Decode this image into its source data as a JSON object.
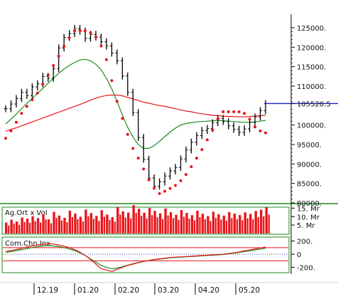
{
  "chart_data": {
    "type": "line",
    "main": {
      "y_ticks": [
        "125000.",
        "120000.",
        "115000.",
        "110000.",
        "105520.5",
        "100000.",
        "95000.",
        "90000.",
        "85000.",
        "80000."
      ],
      "y_range": [
        80000,
        127000
      ],
      "last_value": 105520.5,
      "price": [
        104200,
        105400,
        106800,
        108400,
        107600,
        109800,
        110600,
        112500,
        112000,
        114500,
        119800,
        122500,
        123500,
        124800,
        124100,
        122300,
        123300,
        122600,
        121400,
        120300,
        118500,
        116500,
        112600,
        108400,
        103200,
        96800,
        91200,
        86400,
        84300,
        85400,
        86900,
        88200,
        89100,
        91300,
        93600,
        95600,
        97300,
        98600,
        99100,
        100600,
        101700,
        100900,
        99800,
        98900,
        98100,
        99000,
        100700,
        102100,
        103700,
        105520
      ],
      "ma_short": [
        100300,
        101500,
        102800,
        104200,
        105600,
        106800,
        108100,
        109400,
        110700,
        112000,
        113300,
        114400,
        115300,
        116100,
        116700,
        116900,
        116500,
        115600,
        114200,
        112000,
        109300,
        106000,
        102600,
        99400,
        96900,
        95000,
        94000,
        94000,
        94700,
        95800,
        97000,
        98200,
        99200,
        100000,
        100400,
        100600,
        100800,
        100900,
        101000,
        101100,
        101200,
        101100,
        101000,
        100900,
        100800,
        100700,
        100700,
        100800,
        101000,
        101200
      ],
      "ma_long": [
        98400,
        98900,
        99300,
        99800,
        100300,
        100800,
        101300,
        101800,
        102300,
        102800,
        103300,
        103800,
        104300,
        104800,
        105300,
        105800,
        106400,
        106900,
        107300,
        107600,
        107700,
        107700,
        107500,
        107100,
        106700,
        106300,
        105900,
        105600,
        105300,
        105000,
        104800,
        104500,
        104200,
        103900,
        103600,
        103400,
        103100,
        102900,
        102700,
        102500,
        102400,
        102300,
        102200,
        102200,
        102100,
        102100,
        102200,
        102300,
        102400,
        102500
      ],
      "sar": [
        96600,
        98500,
        100700,
        103000,
        104800,
        106500,
        108200,
        110500,
        112800,
        115300,
        117700,
        120200,
        122400,
        124200,
        124300,
        124200,
        123700,
        122600,
        120300,
        116800,
        111400,
        106100,
        101700,
        97600,
        94000,
        91500,
        88700,
        86000,
        83800,
        82400,
        83000,
        83700,
        84500,
        85700,
        87300,
        89300,
        91500,
        93700,
        96200,
        98700,
        101600,
        103400,
        103400,
        103400,
        103400,
        103000,
        101500,
        99500,
        98500,
        98000
      ]
    },
    "volume": {
      "label": "Ag.Ort x Vol",
      "y_ticks": [
        "15. Mr",
        "10. Mr",
        "5. Mr"
      ],
      "values": [
        6.5,
        8.2,
        7.1,
        9.5,
        8.8,
        10.2,
        9.1,
        11.5,
        8.4,
        12.8,
        10.6,
        9.3,
        13.5,
        11.8,
        9.9,
        14.2,
        12.1,
        10.4,
        13.8,
        11.2,
        9.7,
        15.6,
        13.1,
        12.4,
        16.8,
        14.6,
        12.3,
        15.1,
        13.4,
        11.9,
        14.8,
        12.6,
        11.1,
        13.9,
        12.2,
        10.8,
        13.5,
        11.7,
        10.3,
        12.9,
        11.4,
        10.6,
        12.7,
        11.8,
        10.9,
        12.5,
        11.6,
        13.3,
        14.1,
        15.5
      ],
      "range": [
        0,
        16
      ]
    },
    "oscillator": {
      "label": "Com.Chn.Inx",
      "y_ticks": [
        "200.",
        "0",
        "-200."
      ],
      "levels": [
        100,
        -100
      ],
      "cci": [
        40,
        55,
        70,
        90,
        110,
        125,
        140,
        150,
        160,
        155,
        140,
        120,
        100,
        70,
        30,
        -20,
        -80,
        -150,
        -220,
        -240,
        -260,
        -230,
        -200,
        -170,
        -150,
        -130,
        -110,
        -95,
        -80,
        -70,
        -60,
        -50,
        -45,
        -40,
        -35,
        -30,
        -25,
        -20,
        -15,
        -10,
        -5,
        0,
        10,
        20,
        35,
        50,
        65,
        80,
        95,
        110
      ],
      "signal": [
        30,
        40,
        55,
        70,
        85,
        100,
        115,
        125,
        130,
        125,
        115,
        100,
        80,
        55,
        20,
        -20,
        -70,
        -120,
        -170,
        -200,
        -220,
        -210,
        -190,
        -165,
        -145,
        -125,
        -110,
        -95,
        -85,
        -75,
        -65,
        -55,
        -50,
        -45,
        -40,
        -35,
        -30,
        -25,
        -20,
        -15,
        -10,
        -5,
        5,
        15,
        28,
        40,
        52,
        65,
        78,
        90
      ],
      "range": [
        -280,
        260
      ]
    },
    "x_ticks": [
      "12.19",
      "01.20",
      "02.20",
      "03.20",
      "04.20",
      "05.20"
    ],
    "colors": {
      "price": "#000000",
      "sar": "#e8151b",
      "ma_short": "#1f8a1f",
      "ma_long": "#e8151b",
      "last_value_line": "#1a1ac8",
      "volume": "#e8151b",
      "panel_border": "#1a8a1a",
      "cci": "#e8151b",
      "signal": "#1f8a1f"
    }
  }
}
